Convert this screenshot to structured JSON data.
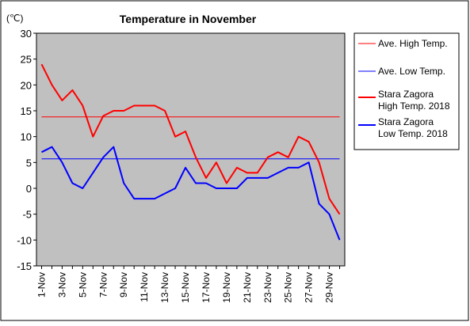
{
  "chart_data": {
    "type": "line",
    "title": "Temperature in November",
    "unit_label": "(℃)",
    "ylim": [
      -15,
      30
    ],
    "yticks": [
      30,
      25,
      20,
      15,
      10,
      5,
      0,
      -5,
      -10,
      -15
    ],
    "x": [
      1,
      2,
      3,
      4,
      5,
      6,
      7,
      8,
      9,
      10,
      11,
      12,
      13,
      14,
      15,
      16,
      17,
      18,
      19,
      20,
      21,
      22,
      23,
      24,
      25,
      26,
      27,
      28,
      29,
      30
    ],
    "x_tick_labels": [
      "1-Nov",
      "3-Nov",
      "5-Nov",
      "7-Nov",
      "9-Nov",
      "11-Nov",
      "13-Nov",
      "15-Nov",
      "17-Nov",
      "19-Nov",
      "21-Nov",
      "23-Nov",
      "25-Nov",
      "27-Nov",
      "29-Nov"
    ],
    "grid": false,
    "legend_position": "right",
    "series": [
      {
        "name": "Ave. High Temp.",
        "color": "#ff0000",
        "style": "thin",
        "values": [
          13.8,
          13.8,
          13.8,
          13.8,
          13.8,
          13.8,
          13.8,
          13.8,
          13.8,
          13.8,
          13.8,
          13.8,
          13.8,
          13.8,
          13.8,
          13.8,
          13.8,
          13.8,
          13.8,
          13.8,
          13.8,
          13.8,
          13.8,
          13.8,
          13.8,
          13.8,
          13.8,
          13.8,
          13.8,
          13.8
        ]
      },
      {
        "name": "Ave. Low Temp.",
        "color": "#0000ff",
        "style": "thin",
        "values": [
          5.7,
          5.7,
          5.7,
          5.7,
          5.7,
          5.7,
          5.7,
          5.7,
          5.7,
          5.7,
          5.7,
          5.7,
          5.7,
          5.7,
          5.7,
          5.7,
          5.7,
          5.7,
          5.7,
          5.7,
          5.7,
          5.7,
          5.7,
          5.7,
          5.7,
          5.7,
          5.7,
          5.7,
          5.7,
          5.7
        ]
      },
      {
        "name": "Stara Zagora\nHigh Temp. 2018",
        "color": "#ff0000",
        "style": "thick",
        "values": [
          24,
          20,
          17,
          19,
          16,
          10,
          14,
          15,
          15,
          16,
          16,
          16,
          15,
          10,
          11,
          6,
          2,
          5,
          1,
          4,
          3,
          3,
          6,
          7,
          6,
          10,
          9,
          5,
          -2,
          -5
        ]
      },
      {
        "name": "Stara Zagora\nLow Temp. 2018",
        "color": "#0000ff",
        "style": "thick",
        "values": [
          7,
          8,
          5,
          1,
          0,
          3,
          6,
          8,
          1,
          -2,
          -2,
          -2,
          -1,
          0,
          4,
          1,
          1,
          0,
          0,
          0,
          2,
          2,
          2,
          3,
          4,
          4,
          5,
          -3,
          -5,
          -10
        ]
      }
    ]
  }
}
